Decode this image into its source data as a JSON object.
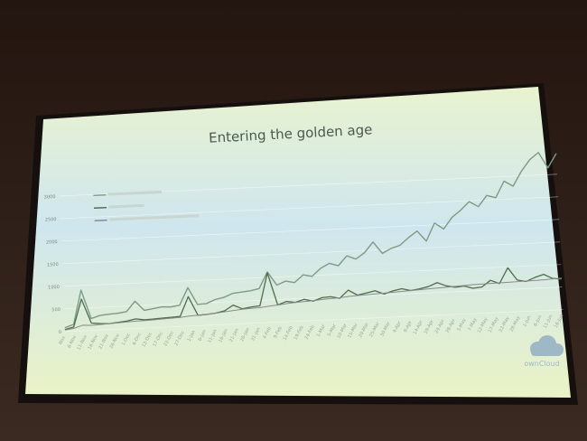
{
  "slide": {
    "title": "Entering the golden age",
    "logo_text": "ownCloud"
  },
  "colors": {
    "room": "#2a1d16",
    "screen_top": "#e9f3cf",
    "screen_mid": "#cfe6ee",
    "screen_bottom": "#eaf3c6",
    "series_1": "#7f9a85",
    "series_2": "#4f6d4b",
    "series_3": "#8a8a8a"
  },
  "chart_data": {
    "type": "line",
    "title": "Entering the golden age",
    "xlabel": "",
    "ylabel": "",
    "ylim": [
      0,
      3500
    ],
    "yticks": [
      "0",
      "500",
      "1000",
      "1500",
      "2000",
      "2500",
      "3000"
    ],
    "x_ticks": [
      "Nov",
      "6-Nov",
      "11-Nov",
      "16-Nov",
      "21-Nov",
      "26-Nov",
      "1-Dec",
      "6-Dec",
      "12-Dec",
      "17-Dec",
      "22-Dec",
      "27-Dec",
      "1-Jan",
      "6-Jan",
      "11-Jan",
      "16-Jan",
      "21-Jan",
      "26-Jan",
      "31-Jan",
      "4-Feb",
      "9-Feb",
      "14-Feb",
      "19-Feb",
      "24-Feb",
      "1-Mar",
      "5-Mar",
      "10-Mar",
      "15-Mar",
      "20-Mar",
      "25-Mar",
      "30-Mar",
      "4-Apr",
      "9-Apr",
      "14-Apr",
      "19-Apr",
      "24-Apr",
      "28-Apr",
      "3-May",
      "7-May",
      "12-May",
      "17-May",
      "22-May",
      "28-May",
      "1-Jun",
      "6-Jun",
      "11-Jun",
      "16-Jun"
    ],
    "legend_position": "top-left",
    "grid": true,
    "series": [
      {
        "name": "",
        "values": [
          80,
          150,
          900,
          260,
          320,
          340,
          350,
          380,
          600,
          390,
          420,
          450,
          440,
          470,
          850,
          470,
          480,
          560,
          600,
          680,
          700,
          720,
          760,
          1120,
          820,
          900,
          860,
          1020,
          980,
          1150,
          1250,
          1190,
          1400,
          1320,
          1450,
          1680,
          1420,
          1520,
          1580,
          1740,
          1880,
          1650,
          2040,
          1900,
          2150,
          2300,
          2480,
          2360,
          2600,
          2540,
          2900,
          2780,
          3100,
          3350,
          3500,
          3150,
          3460
        ]
      },
      {
        "name": "",
        "values": [
          40,
          90,
          700,
          160,
          140,
          130,
          150,
          170,
          210,
          180,
          190,
          200,
          210,
          220,
          650,
          230,
          240,
          260,
          300,
          420,
          330,
          360,
          380,
          1100,
          380,
          450,
          420,
          480,
          430,
          500,
          510,
          470,
          640,
          520,
          560,
          600,
          520,
          580,
          620,
          570,
          600,
          640,
          720,
          640,
          600,
          620,
          560,
          580,
          720,
          640,
          980,
          700,
          660,
          740,
          800,
          700,
          680
        ]
      },
      {
        "name": "",
        "values": [
          30,
          60,
          120,
          110,
          120,
          130,
          140,
          150,
          160,
          165,
          170,
          180,
          190,
          200,
          220,
          230,
          240,
          260,
          280,
          300,
          320,
          330,
          340,
          360,
          380,
          400,
          420,
          430,
          440,
          460,
          470,
          480,
          500,
          510,
          520,
          530,
          540,
          550,
          560,
          570,
          580,
          590,
          600,
          610,
          620,
          630,
          640,
          645,
          650,
          655,
          660,
          665,
          670,
          675,
          680,
          690,
          700
        ]
      }
    ]
  }
}
